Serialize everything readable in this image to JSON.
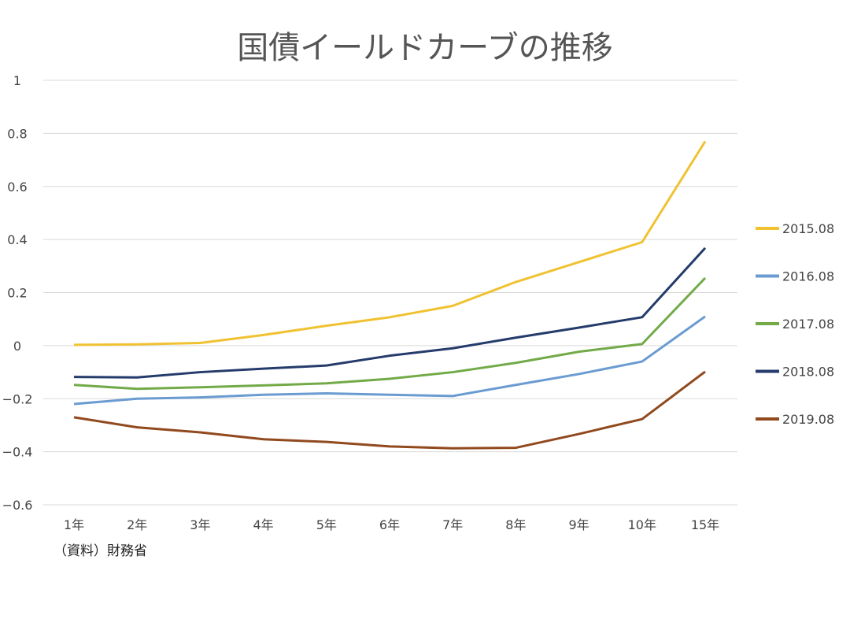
{
  "chart_data": {
    "type": "line",
    "title": "国債イールドカーブの推移",
    "source_note": "（資料）財務省",
    "xlabel": "",
    "ylabel": "",
    "categories": [
      "1年",
      "2年",
      "3年",
      "4年",
      "5年",
      "6年",
      "7年",
      "8年",
      "9年",
      "10年",
      "15年"
    ],
    "ylim": [
      -0.6,
      1
    ],
    "yticks": [
      1,
      0.8,
      0.6,
      0.4,
      0.2,
      0,
      -0.2,
      -0.4,
      -0.6
    ],
    "ytick_labels": [
      "1",
      "0.8",
      "0.6",
      "0.4",
      "0.2",
      "0",
      "−0.2",
      "−0.4",
      "−0.6"
    ],
    "grid": true,
    "legend_position": "right",
    "series": [
      {
        "name": "2015.08",
        "color": "#f0c232",
        "values": [
          0.003,
          0.005,
          0.01,
          0.04,
          0.075,
          0.107,
          0.15,
          0.24,
          0.315,
          0.39,
          0.77
        ]
      },
      {
        "name": "2016.08",
        "color": "#6a9bd1",
        "values": [
          -0.22,
          -0.2,
          -0.195,
          -0.185,
          -0.18,
          -0.185,
          -0.19,
          -0.148,
          -0.107,
          -0.06,
          0.11
        ]
      },
      {
        "name": "2017.08",
        "color": "#72aa48",
        "values": [
          -0.148,
          -0.163,
          -0.157,
          -0.15,
          -0.142,
          -0.125,
          -0.1,
          -0.065,
          -0.023,
          0.006,
          0.255
        ]
      },
      {
        "name": "2018.08",
        "color": "#243b6b",
        "values": [
          -0.118,
          -0.12,
          -0.1,
          -0.087,
          -0.075,
          -0.038,
          -0.01,
          0.03,
          0.068,
          0.107,
          0.368
        ]
      },
      {
        "name": "2019.08",
        "color": "#91491e",
        "values": [
          -0.27,
          -0.308,
          -0.327,
          -0.353,
          -0.363,
          -0.38,
          -0.387,
          -0.385,
          -0.333,
          -0.277,
          -0.098
        ]
      }
    ]
  }
}
